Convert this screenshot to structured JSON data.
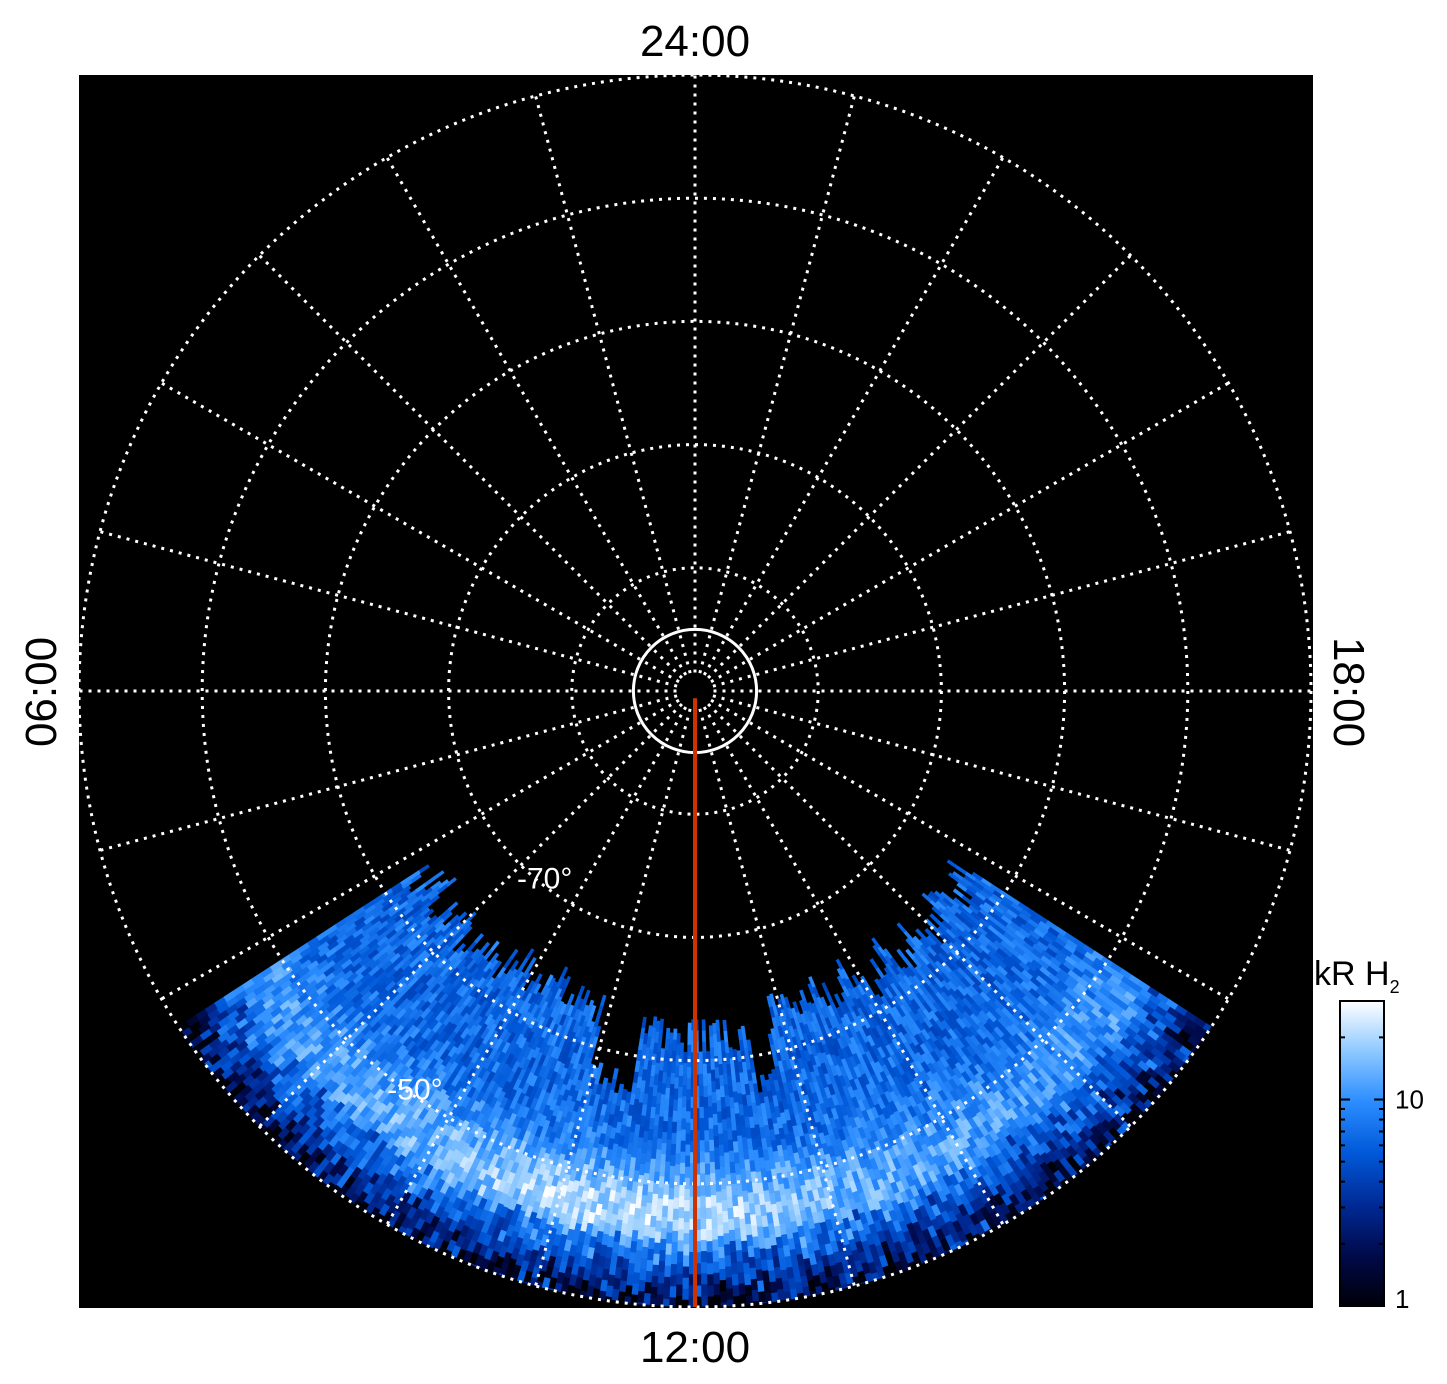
{
  "chart_data": {
    "type": "heatmap",
    "projection": "polar",
    "hemisphere": "south",
    "background_color": "#000000",
    "grid": true,
    "grid_style": "dotted",
    "grid_color": "#ffffff",
    "mlt_labels": [
      {
        "text": "24:00",
        "position": "top"
      },
      {
        "text": "12:00",
        "position": "bottom"
      },
      {
        "text": "06:00",
        "position": "left"
      },
      {
        "text": "18:00",
        "position": "right"
      }
    ],
    "latitude_circles": [
      -90,
      -85,
      -80,
      -70,
      -60,
      -50,
      -40
    ],
    "latitude_range": [
      -90,
      -40
    ],
    "meridian_step_hours": 1,
    "latitude_labels": [
      {
        "text": "-70°",
        "lat": -70,
        "lt": 14.7
      },
      {
        "text": "-50°",
        "lat": -50,
        "lt": 14.4
      }
    ],
    "marker_line": {
      "color": "#cc3300",
      "lt": 12,
      "lat_range": [
        -90,
        -40
      ]
    },
    "colorbar": {
      "label": "kR H",
      "label_sub": "2",
      "scale": "log",
      "range": [
        1,
        30
      ],
      "tick_labels": [
        {
          "text": "1",
          "value": 1
        },
        {
          "text": "10",
          "value": 10
        }
      ],
      "colors": [
        "#000008",
        "#000a4a",
        "#002a96",
        "#0058d8",
        "#2a8cff",
        "#8cc8ff",
        "#ffffff"
      ]
    },
    "emission": {
      "coverage_lt": [
        8.2,
        15.8
      ],
      "coverage_lat_min": -40,
      "inner_edge_lat": -62,
      "inner_edge_lat_noon": -60,
      "bright_arc_lat": [
        -52,
        -44
      ],
      "bright_arc_peak_lt": 12.5,
      "peak_kr": 30
    }
  }
}
